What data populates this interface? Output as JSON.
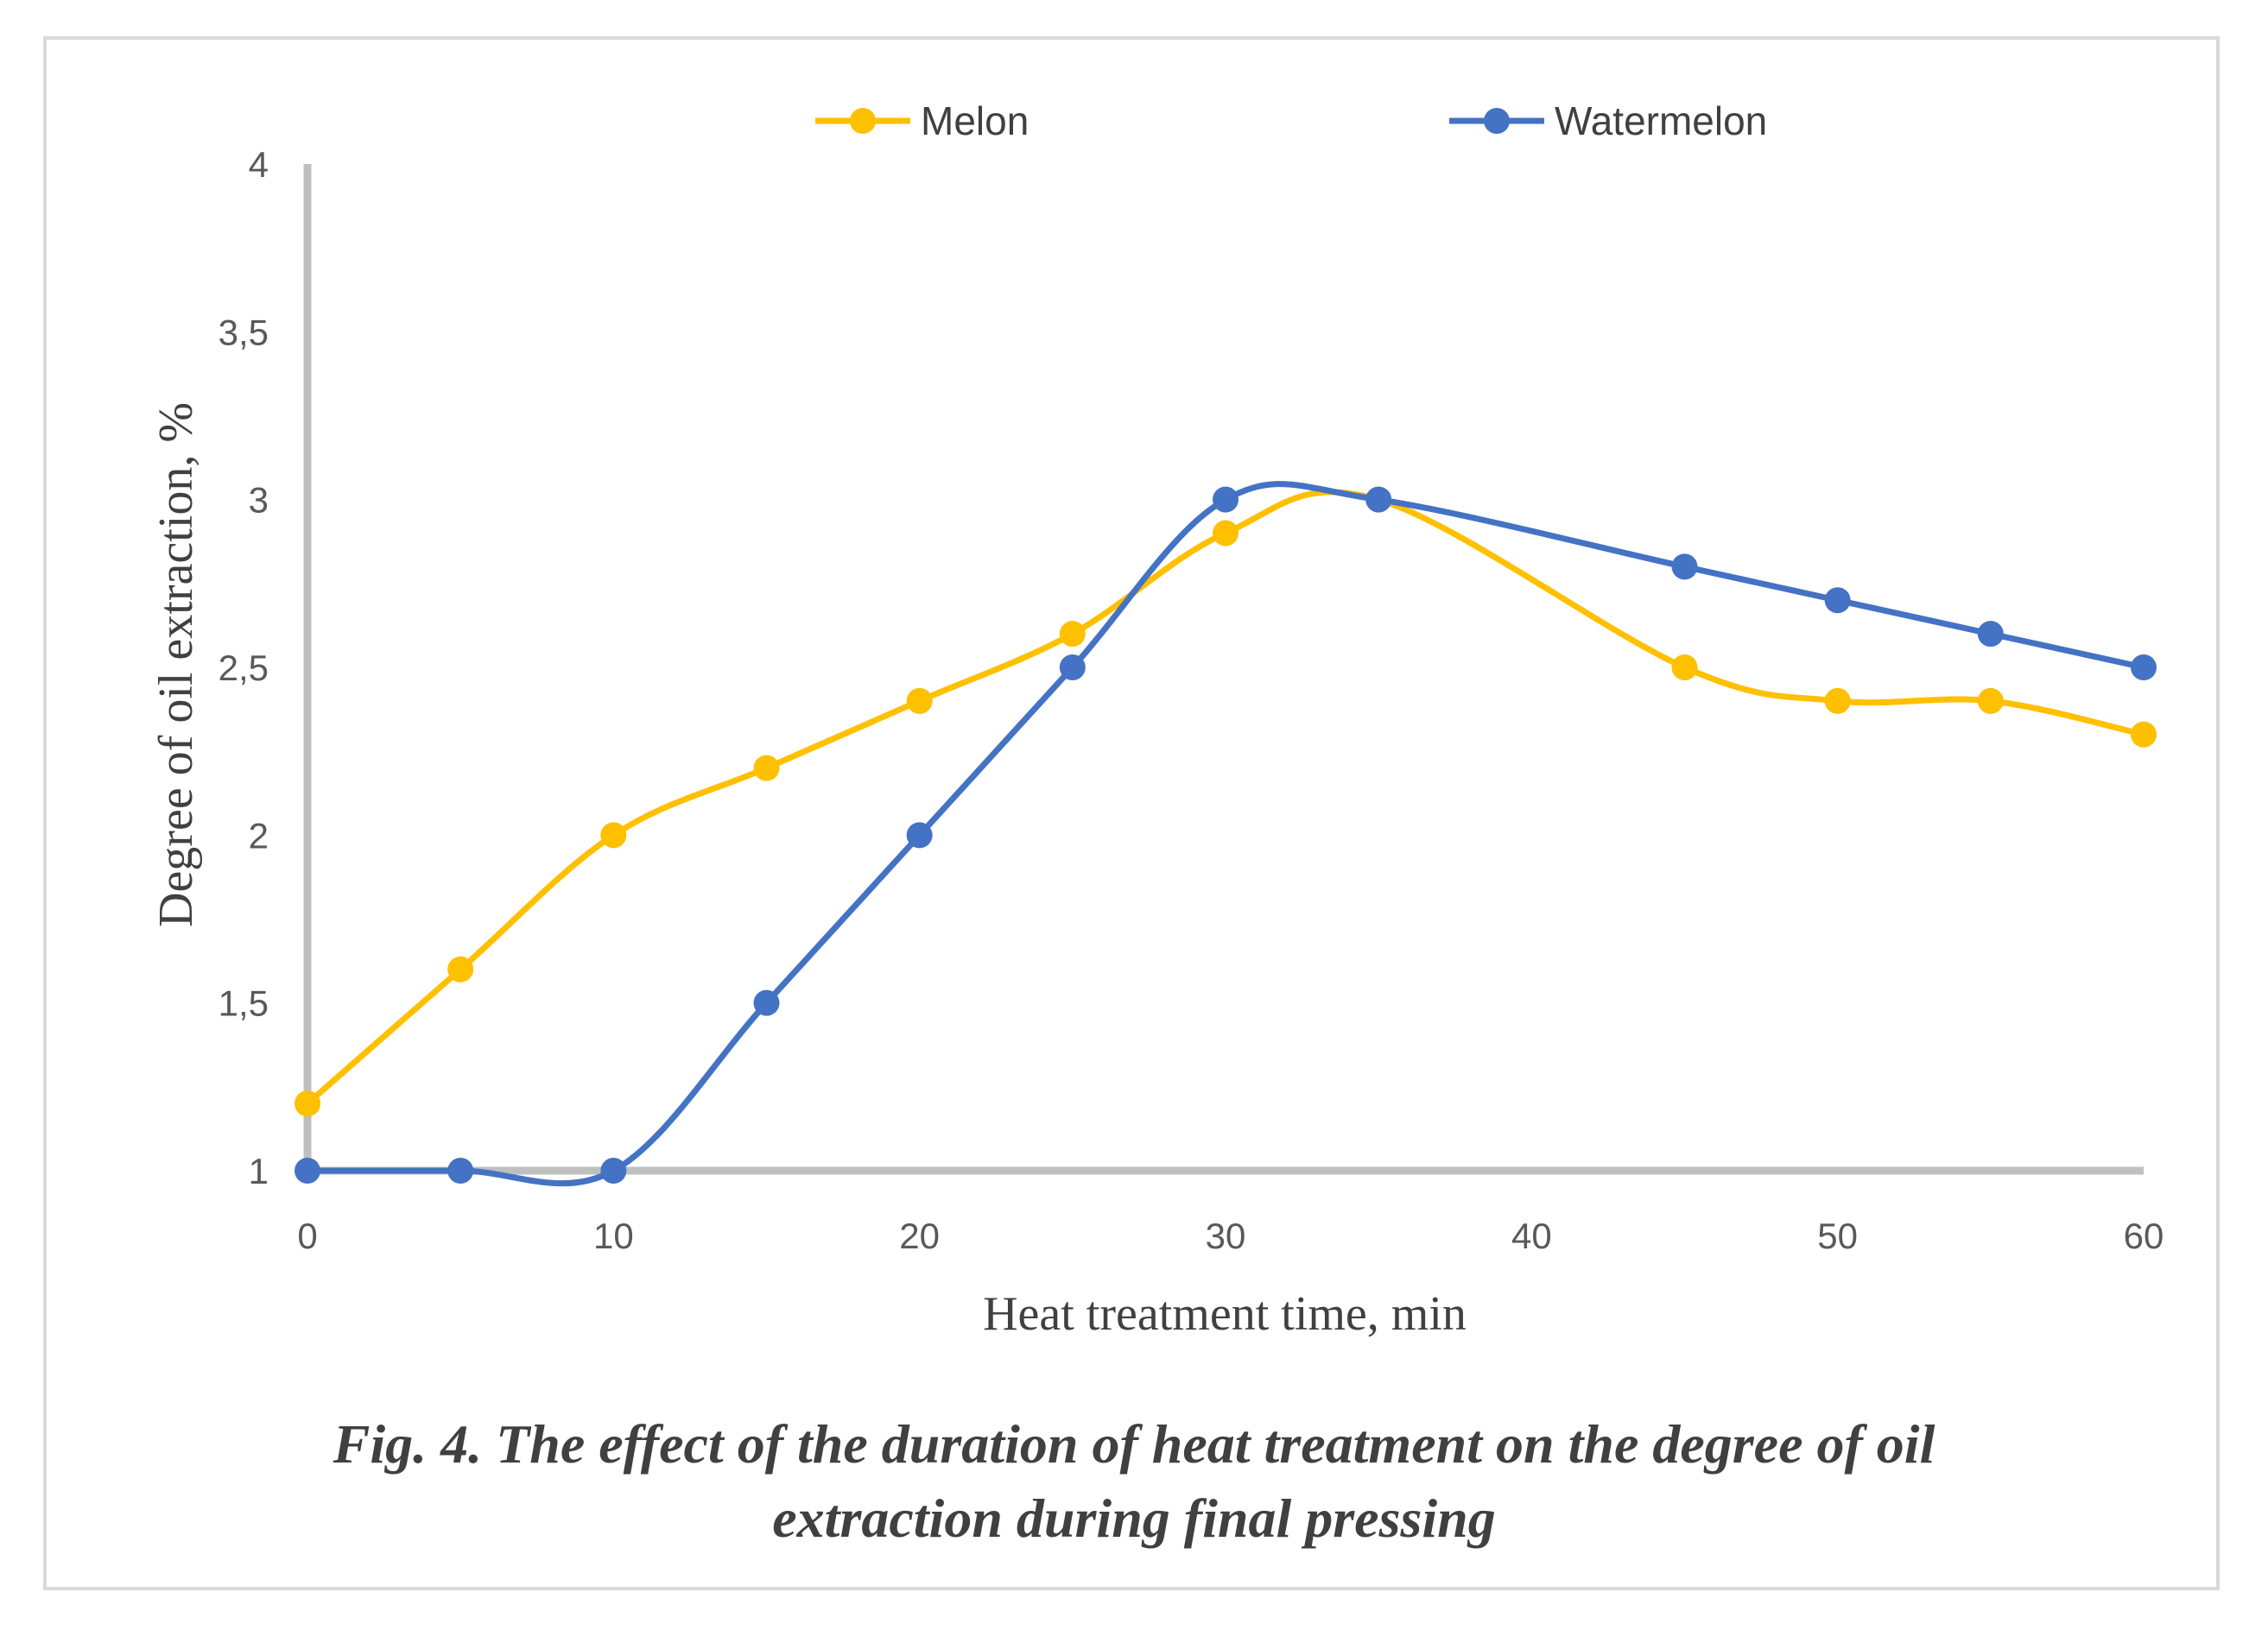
{
  "chart_data": {
    "type": "line",
    "title": "",
    "xlabel": "Heat treatment time, min",
    "ylabel": "Degree of oil extraction, %",
    "xlim": [
      0,
      60
    ],
    "ylim": [
      1,
      4
    ],
    "x_ticks": [
      "0",
      "10",
      "20",
      "30",
      "40",
      "50",
      "60"
    ],
    "y_ticks": [
      "1",
      "1,5",
      "2",
      "2,5",
      "3",
      "3,5",
      "4"
    ],
    "legend_position": "top",
    "grid": false,
    "series": [
      {
        "name": "Melon",
        "color": "#FFC000",
        "x": [
          0,
          5,
          10,
          15,
          20,
          25,
          30,
          35,
          45,
          50,
          55,
          60
        ],
        "values": [
          1.2,
          1.6,
          2.0,
          2.2,
          2.4,
          2.6,
          2.9,
          3.0,
          2.5,
          2.4,
          2.4,
          2.3
        ]
      },
      {
        "name": "Watermelon",
        "color": "#4472C4",
        "x": [
          0,
          5,
          10,
          15,
          20,
          25,
          30,
          35,
          45,
          50,
          55,
          60
        ],
        "values": [
          1.0,
          1.0,
          1.0,
          1.5,
          2.0,
          2.5,
          3.0,
          3.0,
          2.8,
          2.7,
          2.6,
          2.5
        ]
      }
    ]
  },
  "caption": {
    "line1": "Fig. 4. The effect of the duration of heat treatment on the degree of oil",
    "line2": "extraction during final pressing"
  },
  "colors": {
    "axis": "#BFBFBF",
    "text": "#404040",
    "frame": "#D9D9D9"
  }
}
